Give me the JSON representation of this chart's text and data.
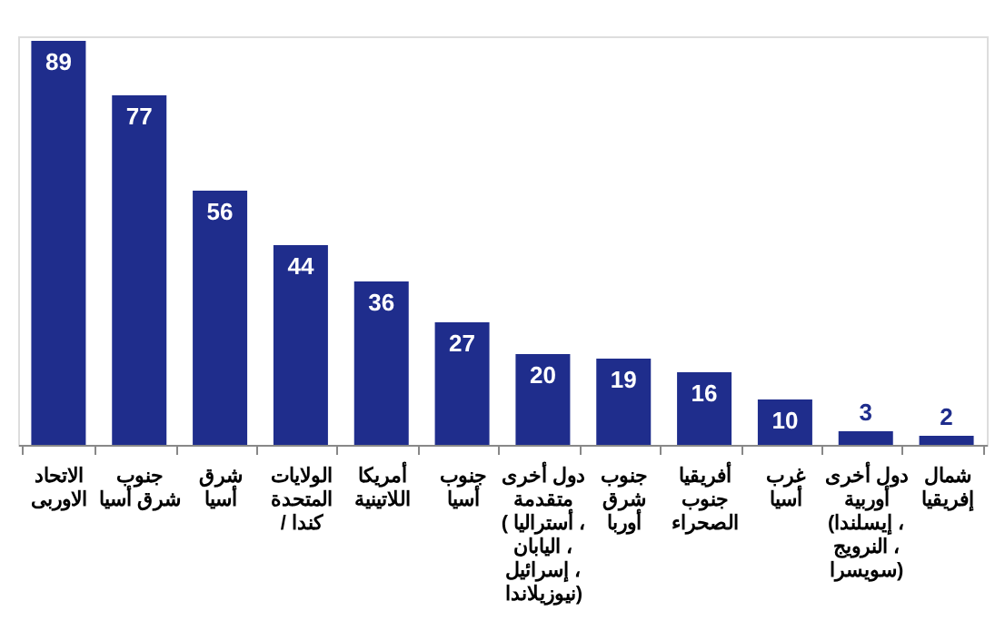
{
  "chart_data": {
    "type": "bar",
    "categories": [
      "الاتحاد\nالاوربى",
      "جنوب\nشرق أسيا",
      "شرق\nأسيا",
      "الولايات\nالمتحدة\n/ كندا",
      "أمريكا\nاللاتينية",
      "جنوب\nأسيا",
      "دول أخرى\nمتقدمة\n( أستراليا ،\nاليابان ،\nإسرائيل ،\nنيوزيلاندا)",
      "جنوب\nشرق\nأوربا",
      "أفريقيا\nجنوب\nالصحراء",
      "غرب\nأسيا",
      "دول أخرى\nأوربية\n(إيسلندا ،\nالنرويج ،\nسويسرا)",
      "شمال\nإفريقيا"
    ],
    "values": [
      89,
      77,
      56,
      44,
      36,
      27,
      20,
      19,
      16,
      10,
      3,
      2
    ],
    "color": "#1f2d8c",
    "data_labels": true,
    "grid": false,
    "legend": false
  }
}
